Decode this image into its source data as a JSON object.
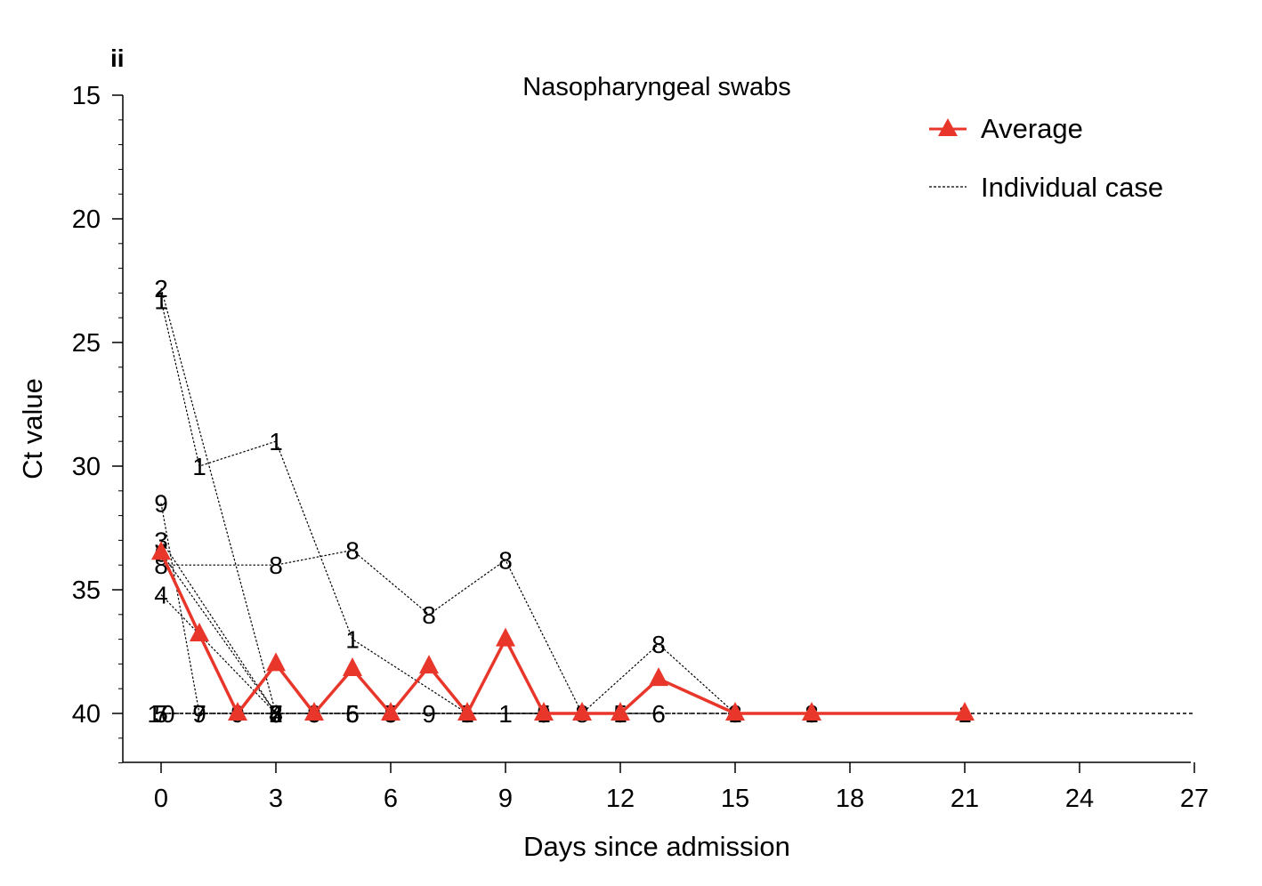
{
  "panel_label": "ii",
  "chart_data": {
    "type": "line",
    "title": "Nasopharyngeal swabs",
    "xlabel": "Days since admission",
    "ylabel": "Ct value",
    "xlim": [
      -1,
      27
    ],
    "ylim": [
      42,
      15
    ],
    "y_inverted": true,
    "x_ticks": [
      0,
      3,
      6,
      9,
      12,
      15,
      18,
      21,
      24,
      27
    ],
    "y_ticks": [
      15,
      20,
      25,
      30,
      35,
      40
    ],
    "y_minor_step": 1,
    "grid": false,
    "legend_position": "top-right",
    "legend": [
      {
        "label": "Average",
        "style": "red-line-triangle"
      },
      {
        "label": "Individual case",
        "style": "black-dotted"
      }
    ],
    "colors": {
      "average": "#e8372a",
      "individual": "#000000"
    },
    "limit_line_y": 40,
    "limit_line_x": [
      0,
      27
    ],
    "average": {
      "name": "Average",
      "points": [
        [
          0,
          33.5
        ],
        [
          1,
          36.8
        ],
        [
          2,
          40
        ],
        [
          3,
          38
        ],
        [
          4,
          40
        ],
        [
          5,
          38.2
        ],
        [
          6,
          40
        ],
        [
          7,
          38.1
        ],
        [
          8,
          40
        ],
        [
          9,
          37
        ],
        [
          10,
          40
        ],
        [
          11,
          40
        ],
        [
          12,
          40
        ],
        [
          13,
          38.6
        ],
        [
          15,
          40
        ],
        [
          17,
          40
        ],
        [
          21,
          40
        ]
      ]
    },
    "cases": [
      {
        "label": "1",
        "points": [
          [
            0,
            23.3
          ],
          [
            1,
            30
          ],
          [
            3,
            29
          ],
          [
            5,
            37
          ],
          [
            8,
            40
          ],
          [
            9,
            40
          ],
          [
            10,
            40
          ],
          [
            12,
            40
          ],
          [
            15,
            40
          ],
          [
            17,
            40
          ],
          [
            21,
            40
          ]
        ]
      },
      {
        "label": "2",
        "points": [
          [
            0,
            22.8
          ],
          [
            3,
            40
          ]
        ]
      },
      {
        "label": "3",
        "points": [
          [
            0,
            33
          ],
          [
            3,
            40
          ]
        ]
      },
      {
        "label": "4",
        "points": [
          [
            0,
            35.2
          ],
          [
            3,
            40
          ]
        ]
      },
      {
        "label": "5",
        "points": [
          [
            0,
            40
          ],
          [
            3,
            40
          ],
          [
            5,
            40
          ],
          [
            6,
            40
          ],
          [
            8,
            40
          ],
          [
            10,
            40
          ],
          [
            12,
            40
          ]
        ]
      },
      {
        "label": "6",
        "points": [
          [
            0,
            33.5
          ],
          [
            3,
            40
          ],
          [
            4,
            40
          ],
          [
            5,
            40
          ],
          [
            6,
            40
          ],
          [
            13,
            40
          ]
        ]
      },
      {
        "label": "7",
        "points": [
          [
            0,
            40
          ],
          [
            1,
            40
          ],
          [
            3,
            40
          ]
        ]
      },
      {
        "label": "8",
        "points": [
          [
            0,
            34
          ],
          [
            3,
            34
          ],
          [
            5,
            33.4
          ],
          [
            7,
            36
          ],
          [
            9,
            33.8
          ],
          [
            11,
            40
          ],
          [
            13,
            37.2
          ],
          [
            15,
            40
          ],
          [
            17,
            40
          ]
        ]
      },
      {
        "label": "9",
        "points": [
          [
            0,
            31.5
          ],
          [
            1,
            40
          ],
          [
            2,
            40
          ],
          [
            4,
            40
          ],
          [
            7,
            40
          ],
          [
            10,
            40
          ]
        ]
      },
      {
        "label": "10",
        "points": [
          [
            0,
            40
          ]
        ]
      }
    ]
  }
}
